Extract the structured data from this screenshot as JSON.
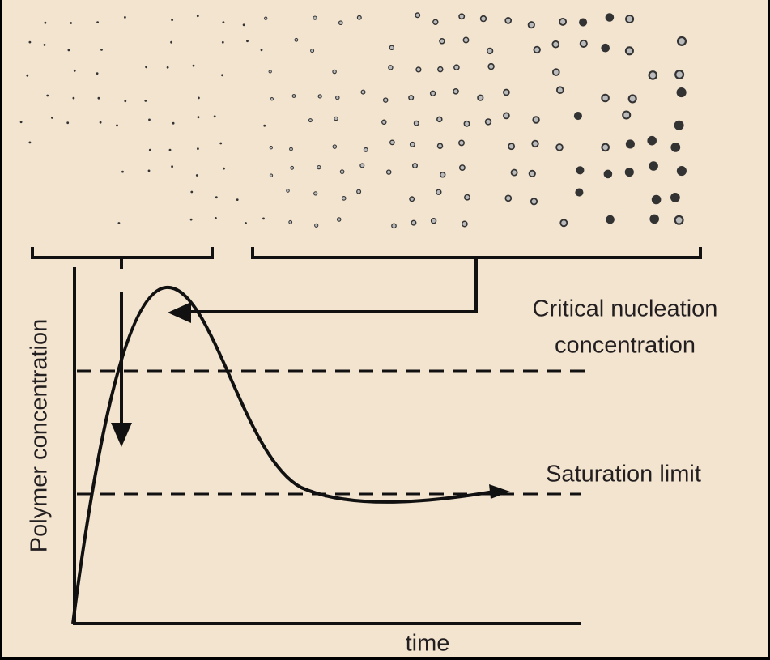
{
  "labels": {
    "y_axis": "Polymer concentration",
    "x_axis": "time",
    "critical": [
      "Critical nucleation",
      "concentration"
    ],
    "saturation": "Saturation limit"
  }
}
